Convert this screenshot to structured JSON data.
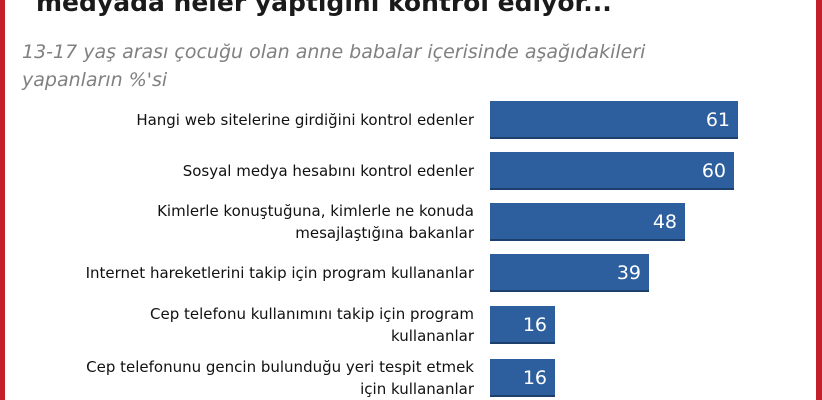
{
  "colors": {
    "border": "#c21f2a",
    "bar": "#2d5f9e",
    "subtitle": "#808080"
  },
  "header": {
    "title": "medyada neler yaptığını kontrol ediyor...",
    "subtitle": "13-17 yaş arası çocuğu olan anne babalar içerisinde aşağıdakileri yapanların %'si"
  },
  "chart_data": {
    "type": "bar",
    "orientation": "horizontal",
    "title": "medyada neler yaptığını kontrol ediyor...",
    "subtitle": "13-17 yaş arası çocuğu olan anne babalar içerisinde aşağıdakileri yapanların %'si",
    "categories": [
      [
        "Hangi web sitelerine girdiğini kontrol edenler"
      ],
      [
        "Sosyal medya hesabını kontrol edenler"
      ],
      [
        "Kimlerle konuştuğuna, kimlerle ne konuda",
        "mesajlaştığına bakanlar"
      ],
      [
        "Internet hareketlerini takip için program kullananlar"
      ],
      [
        "Cep telefonu kullanımını takip için program",
        "kullananlar"
      ],
      [
        "Cep telefonunu gencin bulunduğu yeri tespit etmek",
        "için kullananlar"
      ]
    ],
    "values": [
      61,
      60,
      48,
      39,
      16,
      16
    ],
    "value_labels": [
      "61",
      "60",
      "48",
      "39",
      "16",
      "16"
    ],
    "xlim": [
      0,
      100
    ],
    "grid": false,
    "legend": "none"
  }
}
